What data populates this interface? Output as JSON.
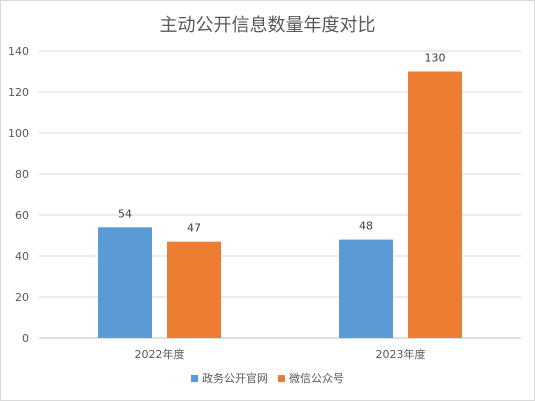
{
  "chart_data": {
    "type": "bar",
    "title": "主动公开信息数量年度对比",
    "categories": [
      "2022年度",
      "2023年度"
    ],
    "series": [
      {
        "name": "政务公开官网",
        "values": [
          54,
          48
        ],
        "color": "#5b9bd5"
      },
      {
        "name": "微信公众号",
        "values": [
          47,
          130
        ],
        "color": "#ed7d31"
      }
    ],
    "ylim": [
      0,
      140
    ],
    "yticks": [
      0,
      20,
      40,
      60,
      80,
      100,
      120,
      140
    ],
    "grid": true,
    "legend_position": "bottom",
    "xlabel": "",
    "ylabel": ""
  }
}
